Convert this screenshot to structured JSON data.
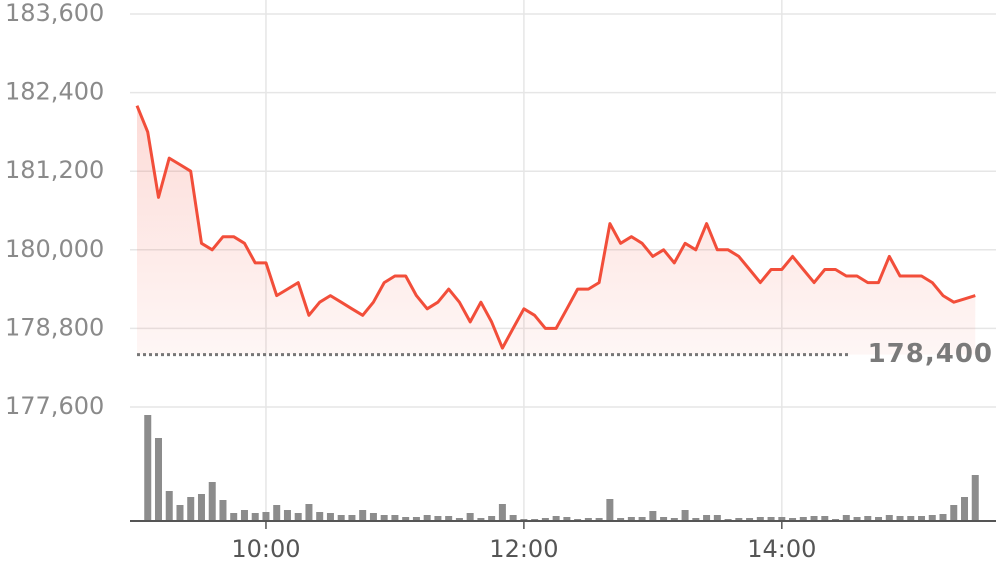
{
  "chart_data": {
    "type": "line",
    "x": [
      540,
      545,
      550,
      555,
      560,
      565,
      570,
      575,
      580,
      585,
      590,
      595,
      600,
      605,
      610,
      615,
      620,
      625,
      630,
      635,
      640,
      645,
      650,
      655,
      660,
      665,
      670,
      675,
      680,
      685,
      690,
      695,
      700,
      705,
      710,
      715,
      720,
      725,
      730,
      735,
      740,
      745,
      750,
      755,
      760,
      765,
      770,
      775,
      780,
      785,
      790,
      795,
      800,
      805,
      810,
      815,
      820,
      825,
      830,
      835,
      840,
      845,
      850,
      855,
      860,
      865,
      870,
      875,
      880,
      885,
      890,
      895,
      900,
      905,
      910,
      915,
      920,
      925,
      930
    ],
    "series": [
      {
        "name": "price",
        "color": "#f24e3a",
        "values": [
          182200,
          181800,
          180800,
          181400,
          181300,
          181200,
          180100,
          180000,
          180200,
          180200,
          180100,
          179800,
          179800,
          179300,
          179400,
          179500,
          179000,
          179200,
          179300,
          179200,
          179100,
          179000,
          179200,
          179500,
          179600,
          179600,
          179300,
          179100,
          179200,
          179400,
          179200,
          178900,
          179200,
          178900,
          178500,
          178800,
          179100,
          179000,
          178800,
          178800,
          179100,
          179400,
          179400,
          179500,
          180400,
          180100,
          180200,
          180100,
          179900,
          180000,
          179800,
          180100,
          180000,
          180400,
          180000,
          180000,
          179900,
          179700,
          179500,
          179700,
          179700,
          179900,
          179700,
          179500,
          179700,
          179700,
          179600,
          179600,
          179500,
          179500,
          179900,
          179600,
          179600,
          179600,
          179500,
          179300,
          179200,
          179250,
          179300
        ]
      },
      {
        "name": "volume",
        "color": "#8c8c8c",
        "values": [
          null,
          106,
          83,
          30,
          16,
          24,
          27,
          39,
          21,
          8,
          11,
          8,
          9,
          16,
          11,
          8,
          17,
          9,
          8,
          6,
          6,
          11,
          8,
          6,
          6,
          4,
          4,
          6,
          5,
          5,
          3,
          8,
          3,
          5,
          17,
          6,
          2,
          2,
          3,
          5,
          4,
          2,
          3,
          3,
          22,
          3,
          4,
          4,
          10,
          4,
          3,
          11,
          3,
          6,
          6,
          2,
          3,
          3,
          4,
          4,
          4,
          3,
          4,
          5,
          5,
          2,
          6,
          4,
          5,
          4,
          6,
          5,
          5,
          5,
          6,
          7,
          16,
          24,
          46
        ]
      }
    ],
    "xlim": [
      540,
      935
    ],
    "xticks": [
      {
        "value": 600,
        "label": "10:00"
      },
      {
        "value": 720,
        "label": "12:00"
      },
      {
        "value": 840,
        "label": "14:00"
      }
    ],
    "ylim": [
      177600,
      183600
    ],
    "yticks": [
      {
        "value": 183600,
        "label": "183,600"
      },
      {
        "value": 182400,
        "label": "182,400"
      },
      {
        "value": 181200,
        "label": "181,200"
      },
      {
        "value": 180000,
        "label": "180,000"
      },
      {
        "value": 178800,
        "label": "178,800"
      },
      {
        "value": 177600,
        "label": "177,600"
      }
    ],
    "volume_ylim": [
      0,
      110
    ],
    "reference": {
      "value": 178400,
      "label": "178,400"
    },
    "grid": true
  }
}
